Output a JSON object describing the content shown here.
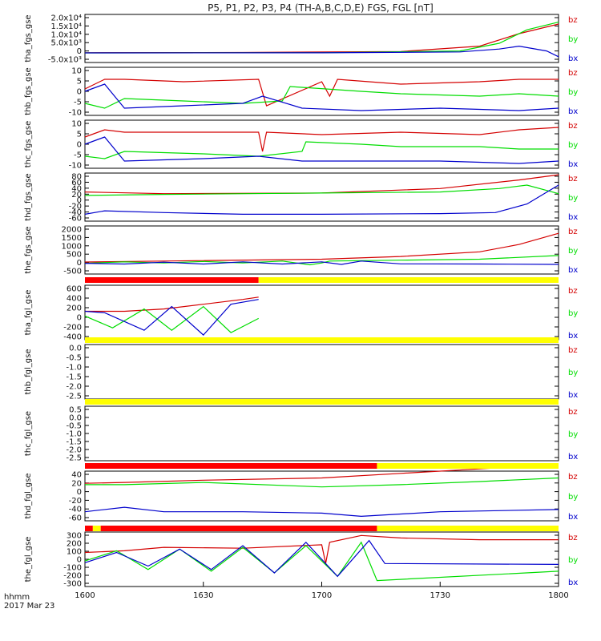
{
  "title": "P5, P1, P2, P3, P4 (TH-A,B,C,D,E) FGS, FGL [nT]",
  "time_axis": {
    "label": "hhmm",
    "date": "2017 Mar 23",
    "ticks": [
      "1600",
      "1630",
      "1700",
      "1730",
      "1800"
    ],
    "start_minutes": 0,
    "end_minutes": 120
  },
  "colors": {
    "bz": "#d40000",
    "by": "#00dd00",
    "bx": "#0000cc",
    "bar_red": "#ff0000",
    "bar_yellow": "#ffff00",
    "bar_black": "#000000"
  },
  "chart_data": [
    {
      "type": "line",
      "ylabel": "tha_fgs_gse",
      "yticks": [
        "2.0x10⁴",
        "1.5x10⁴",
        "1.0x10⁴",
        "5.0x10³",
        "0",
        "-5.0x10³"
      ],
      "ylim": [
        -5000,
        20000
      ],
      "legend": [
        "bz",
        "by",
        "bx"
      ],
      "series": [
        {
          "name": "bz",
          "x": [
            0,
            40,
            80,
            100,
            110,
            120
          ],
          "y": [
            100,
            200,
            700,
            3500,
            10000,
            15000
          ]
        },
        {
          "name": "by",
          "x": [
            0,
            60,
            95,
            105,
            112,
            120
          ],
          "y": [
            0,
            100,
            1000,
            5000,
            12000,
            16000
          ]
        },
        {
          "name": "bx",
          "x": [
            0,
            60,
            95,
            105,
            110,
            117,
            120
          ],
          "y": [
            0,
            50,
            500,
            2000,
            3500,
            1000,
            -2000
          ]
        }
      ]
    },
    {
      "type": "line",
      "ylabel": "thb_fgs_gse",
      "yticks": [
        "10",
        "5",
        "0",
        "-5",
        "-10"
      ],
      "ylim": [
        -10,
        10
      ],
      "legend": [
        "bz",
        "by",
        "bx"
      ],
      "series": [
        {
          "name": "bz",
          "x": [
            0,
            5,
            10,
            25,
            44,
            46,
            60,
            62,
            64,
            80,
            100,
            110,
            120
          ],
          "y": [
            1,
            5,
            5,
            4,
            5,
            -6,
            4,
            -2,
            5,
            3,
            4,
            5,
            5
          ]
        },
        {
          "name": "by",
          "x": [
            0,
            5,
            10,
            25,
            40,
            50,
            52,
            70,
            80,
            100,
            110,
            120
          ],
          "y": [
            -5,
            -7,
            -3,
            -4,
            -5,
            -4,
            2,
            0,
            -1,
            -2,
            -1,
            -2
          ]
        },
        {
          "name": "bx",
          "x": [
            0,
            5,
            10,
            25,
            40,
            45,
            55,
            70,
            90,
            110,
            120
          ],
          "y": [
            0,
            3,
            -7,
            -6,
            -5,
            -2,
            -7,
            -8,
            -7,
            -8,
            -7
          ]
        }
      ]
    },
    {
      "type": "line",
      "ylabel": "thc_fgs_gse",
      "yticks": [
        "10",
        "5",
        "0",
        "-5",
        "-10"
      ],
      "ylim": [
        -10,
        10
      ],
      "legend": [
        "bz",
        "by",
        "bx"
      ],
      "series": [
        {
          "name": "bz",
          "x": [
            0,
            5,
            10,
            30,
            44,
            45,
            46,
            60,
            80,
            100,
            110,
            120
          ],
          "y": [
            3,
            6,
            5,
            5,
            5,
            -3,
            5,
            4,
            5,
            4,
            6,
            7
          ]
        },
        {
          "name": "by",
          "x": [
            0,
            5,
            10,
            30,
            44,
            55,
            56,
            70,
            80,
            100,
            110,
            120
          ],
          "y": [
            -5,
            -6,
            -3,
            -4,
            -5,
            -3,
            1,
            0,
            -1,
            -1,
            -2,
            -2
          ]
        },
        {
          "name": "bx",
          "x": [
            0,
            5,
            10,
            30,
            44,
            55,
            70,
            90,
            110,
            120
          ],
          "y": [
            0,
            3,
            -7,
            -6,
            -5,
            -7,
            -7,
            -7,
            -8,
            -7
          ]
        }
      ]
    },
    {
      "type": "line",
      "ylabel": "thd_fgs_gse",
      "yticks": [
        "80",
        "60",
        "40",
        "20",
        "0",
        "-20",
        "-40",
        "-60"
      ],
      "ylim": [
        -60,
        80
      ],
      "legend": [
        "bz",
        "by",
        "bx"
      ],
      "series": [
        {
          "name": "bz",
          "x": [
            0,
            20,
            60,
            90,
            110,
            120
          ],
          "y": [
            25,
            20,
            22,
            35,
            60,
            75
          ]
        },
        {
          "name": "by",
          "x": [
            0,
            20,
            60,
            90,
            105,
            112,
            120
          ],
          "y": [
            15,
            18,
            22,
            25,
            35,
            45,
            20
          ]
        },
        {
          "name": "bx",
          "x": [
            0,
            5,
            20,
            40,
            60,
            90,
            104,
            112,
            120
          ],
          "y": [
            -40,
            -30,
            -35,
            -40,
            -40,
            -38,
            -35,
            -10,
            45
          ]
        }
      ]
    },
    {
      "type": "line",
      "ylabel": "the_fgs_gse",
      "yticks": [
        "2000",
        "1500",
        "1000",
        "500",
        "0",
        "-500"
      ],
      "ylim": [
        -600,
        2000
      ],
      "legend": [
        "bz",
        "by",
        "bx"
      ],
      "series": [
        {
          "name": "bz",
          "x": [
            0,
            20,
            60,
            80,
            100,
            110,
            120
          ],
          "y": [
            50,
            100,
            200,
            350,
            600,
            1000,
            1600
          ]
        },
        {
          "name": "by",
          "x": [
            0,
            10,
            20,
            30,
            40,
            50,
            57,
            60,
            62,
            80,
            100,
            120
          ],
          "y": [
            -20,
            60,
            0,
            80,
            0,
            100,
            -100,
            0,
            100,
            150,
            200,
            400
          ]
        },
        {
          "name": "bx",
          "x": [
            0,
            10,
            20,
            30,
            40,
            50,
            60,
            65,
            70,
            80,
            100,
            120
          ],
          "y": [
            -20,
            -60,
            40,
            -60,
            60,
            -60,
            60,
            -80,
            100,
            -50,
            -60,
            -80
          ]
        }
      ]
    },
    {
      "type": "line",
      "ylabel": "tha_fgl_gse",
      "yticks": [
        "600",
        "400",
        "200",
        "0",
        "-200",
        "-400"
      ],
      "ylim": [
        -450,
        700
      ],
      "legend": [
        "bz",
        "by",
        "bx"
      ],
      "series": [
        {
          "name": "bz",
          "x": [
            0,
            10,
            20,
            30,
            40,
            44
          ],
          "y": [
            150,
            150,
            200,
            300,
            400,
            450
          ]
        },
        {
          "name": "by",
          "x": [
            0,
            7,
            15,
            22,
            30,
            37,
            44
          ],
          "y": [
            50,
            -200,
            200,
            -250,
            250,
            -300,
            0
          ]
        },
        {
          "name": "bx",
          "x": [
            0,
            5,
            15,
            22,
            30,
            37,
            44
          ],
          "y": [
            150,
            120,
            -250,
            250,
            -350,
            300,
            400
          ]
        }
      ]
    },
    {
      "type": "line",
      "ylabel": "thb_fgl_gse",
      "yticks": [
        "0.0",
        "-0.5",
        "-1.0",
        "-1.5",
        "-2.0",
        "-2.5"
      ],
      "ylim": [
        -2.8,
        0.2
      ],
      "legend": [
        "bz",
        "by",
        "bx"
      ],
      "series": []
    },
    {
      "type": "line",
      "ylabel": "thc_fgl_gse",
      "yticks": [
        "0.5",
        "0.0",
        "-0.5",
        "-1.0",
        "-1.5",
        "-2.0",
        "-2.5"
      ],
      "ylim": [
        -2.8,
        0.6
      ],
      "legend": [
        "bz",
        "by",
        "bx"
      ],
      "series": []
    },
    {
      "type": "line",
      "ylabel": "thd_fgl_gse",
      "yticks": [
        "40",
        "20",
        "0",
        "-20",
        "-40",
        "-60"
      ],
      "ylim": [
        -65,
        45
      ],
      "legend": [
        "bz",
        "by",
        "bx"
      ],
      "series": [
        {
          "name": "bz",
          "x": [
            0,
            10,
            30,
            60,
            80,
            100,
            120
          ],
          "y": [
            18,
            20,
            25,
            30,
            40,
            50,
            60
          ]
        },
        {
          "name": "by",
          "x": [
            0,
            10,
            30,
            60,
            80,
            100,
            120
          ],
          "y": [
            15,
            15,
            20,
            10,
            15,
            22,
            30
          ]
        },
        {
          "name": "bx",
          "x": [
            0,
            10,
            20,
            40,
            60,
            70,
            90,
            120
          ],
          "y": [
            -45,
            -35,
            -45,
            -45,
            -48,
            -55,
            -45,
            -40
          ]
        }
      ]
    },
    {
      "type": "line",
      "ylabel": "the_fgl_gse",
      "yticks": [
        "300",
        "200",
        "100",
        "0",
        "-100",
        "-200",
        "-300"
      ],
      "ylim": [
        -320,
        320
      ],
      "legend": [
        "bz",
        "by",
        "bx"
      ],
      "series": [
        {
          "name": "bz",
          "x": [
            0,
            10,
            20,
            40,
            60,
            61,
            62,
            70,
            80,
            100,
            120
          ],
          "y": [
            80,
            100,
            140,
            130,
            170,
            -50,
            200,
            280,
            250,
            230,
            230
          ]
        },
        {
          "name": "by",
          "x": [
            0,
            8,
            16,
            24,
            32,
            40,
            48,
            56,
            64,
            70,
            74,
            120
          ],
          "y": [
            -20,
            100,
            -120,
            120,
            -140,
            140,
            -160,
            160,
            -200,
            200,
            -250,
            -140
          ]
        },
        {
          "name": "bx",
          "x": [
            0,
            8,
            16,
            24,
            32,
            40,
            48,
            56,
            64,
            72,
            76,
            120
          ],
          "y": [
            -40,
            80,
            -80,
            120,
            -120,
            160,
            -160,
            200,
            -200,
            220,
            -50,
            -60
          ]
        }
      ]
    }
  ],
  "status_bars": [
    {
      "segments": [
        {
          "from": 0,
          "to": 44,
          "color": "bar_red"
        },
        {
          "from": 44,
          "to": 120,
          "color": "bar_yellow"
        }
      ]
    },
    {
      "segments": [
        {
          "from": 0,
          "to": 120,
          "color": "bar_yellow"
        }
      ]
    },
    {
      "segments": [
        {
          "from": 0,
          "to": 120,
          "color": "bar_yellow"
        }
      ]
    },
    {
      "segments": [
        {
          "from": 0,
          "to": 74,
          "color": "bar_red"
        },
        {
          "from": 74,
          "to": 120,
          "color": "bar_yellow"
        }
      ]
    },
    {
      "segments": [
        {
          "from": 0,
          "to": 2,
          "color": "bar_red"
        },
        {
          "from": 2,
          "to": 4,
          "color": "bar_yellow"
        },
        {
          "from": 4,
          "to": 74,
          "color": "bar_red"
        },
        {
          "from": 74,
          "to": 120,
          "color": "bar_yellow"
        }
      ]
    }
  ]
}
